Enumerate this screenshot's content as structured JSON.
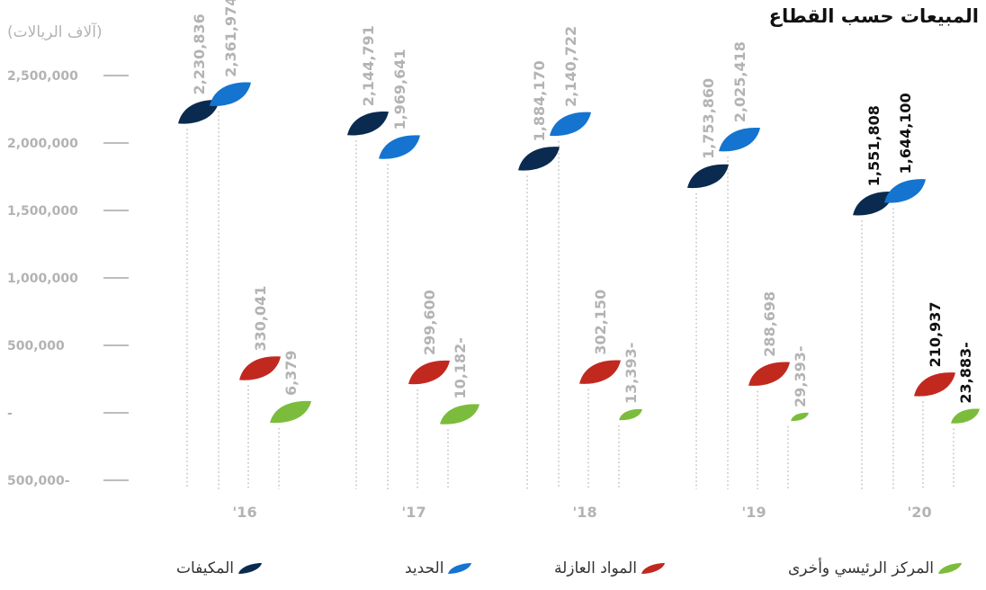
{
  "title": "المبيعات حسب القطاع",
  "unit": "(آلاف الريالات)",
  "colors": {
    "air_conditioners": "#0a2b4f",
    "steel": "#1474d0",
    "insulation": "#c1291f",
    "hq_other": "#7cbc3c",
    "muted_text": "#b3b3b3",
    "highlight_text": "#111111"
  },
  "legend": [
    {
      "name": "المكيفات",
      "color": "#0a2b4f"
    },
    {
      "name": "الحديد",
      "color": "#1474d0"
    },
    {
      "name": "المواد العازلة",
      "color": "#c1291f"
    },
    {
      "name": "المركز الرئيسي وأخرى",
      "color": "#7cbc3c"
    }
  ],
  "chart_data": {
    "type": "scatter",
    "title": "المبيعات حسب القطاع",
    "ylabel": "(آلاف الريالات)",
    "ylim": [
      -500000,
      2500000
    ],
    "yticks": [
      {
        "value": 2500000,
        "label": "2,500,000"
      },
      {
        "value": 2000000,
        "label": "2,000,000"
      },
      {
        "value": 1500000,
        "label": "1,500,000"
      },
      {
        "value": 1000000,
        "label": "1,000,000"
      },
      {
        "value": 500000,
        "label": "500,000"
      },
      {
        "value": 0,
        "label": "-"
      },
      {
        "value": -500000,
        "label": "500,000-"
      }
    ],
    "categories": [
      "'16",
      "'17",
      "'18",
      "'19",
      "'20"
    ],
    "series": [
      {
        "name": "المكيفات",
        "color": "#0a2b4f",
        "values": [
          2230836,
          2144791,
          1884170,
          1753860,
          1551808
        ],
        "labels": [
          "2,230,836",
          "2,144,791",
          "1,884,170",
          "1,753,860",
          "1,551,808"
        ]
      },
      {
        "name": "الحديد",
        "color": "#1474d0",
        "values": [
          2361974,
          1969641,
          2140722,
          2025418,
          1644100
        ],
        "labels": [
          "2,361,974",
          "1,969,641",
          "2,140,722",
          "2,025,418",
          "1,644,100"
        ]
      },
      {
        "name": "المواد العازلة",
        "color": "#c1291f",
        "values": [
          330041,
          299600,
          302150,
          288698,
          210937
        ],
        "labels": [
          "330,041",
          "299,600",
          "302,150",
          "288,698",
          "210,937"
        ]
      },
      {
        "name": "المركز الرئيسي وأخرى",
        "color": "#7cbc3c",
        "values": [
          6379,
          -10182,
          -13393,
          -29393,
          -23883
        ],
        "labels": [
          "6,379",
          "10,182-",
          "13,393-",
          "29,393-",
          "23,883-"
        ]
      }
    ],
    "highlight_category": "'20",
    "grid": false,
    "legend_position": "bottom"
  }
}
